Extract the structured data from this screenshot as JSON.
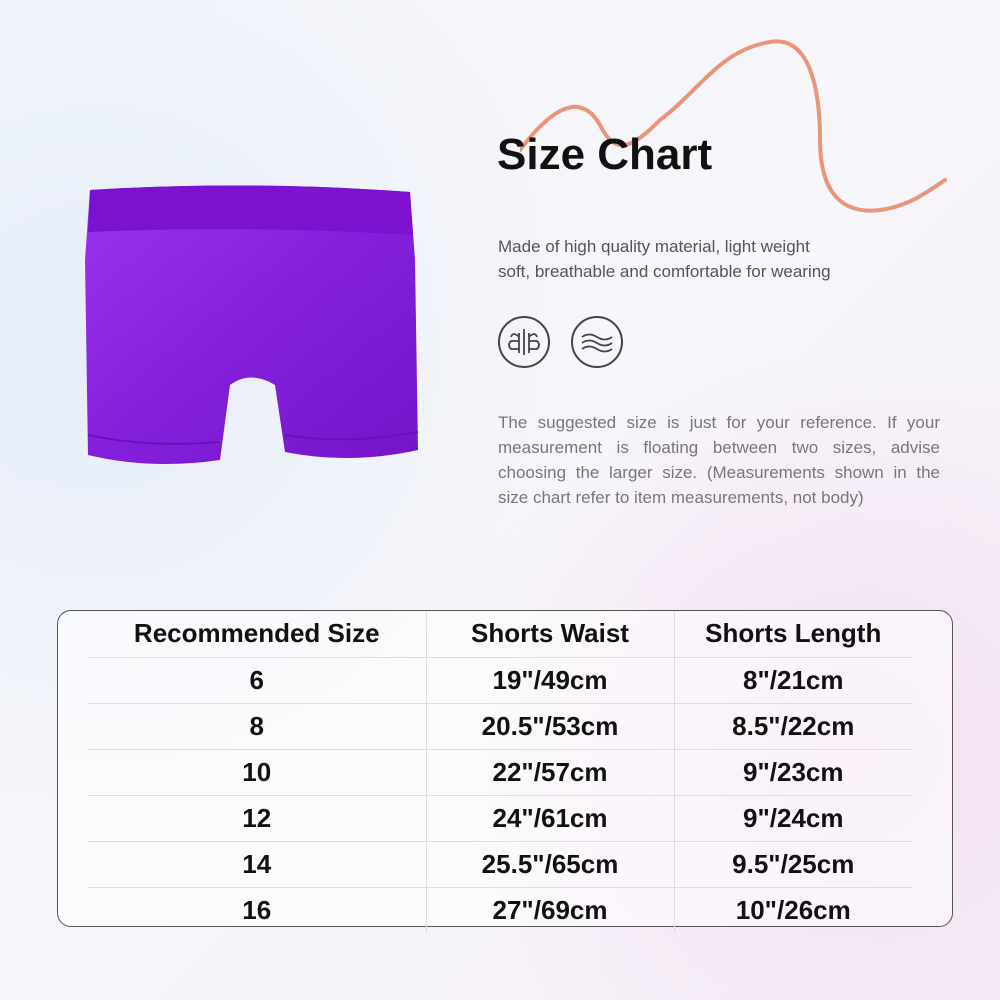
{
  "title": "Size Chart",
  "description": [
    "Made of high quality material, light weight",
    "soft, breathable and comfortable for wearing"
  ],
  "icons": [
    "breathable-icon",
    "lightweight-wave-icon"
  ],
  "note": "The suggested size is just for your reference. If your measurement is floating between two sizes, advise choosing the larger size. (Measurements shown in the size chart refer to item measurements, not body)",
  "product_color": "#8a22e0",
  "accent_color": "#e8957a",
  "table": {
    "headers": [
      "Recommended Size",
      "Shorts Waist",
      "Shorts Length"
    ],
    "rows": [
      [
        "6",
        "19\"/49cm",
        "8\"/21cm"
      ],
      [
        "8",
        "20.5\"/53cm",
        "8.5\"/22cm"
      ],
      [
        "10",
        "22\"/57cm",
        "9\"/23cm"
      ],
      [
        "12",
        "24\"/61cm",
        "9\"/24cm"
      ],
      [
        "14",
        "25.5\"/65cm",
        "9.5\"/25cm"
      ],
      [
        "16",
        "27\"/69cm",
        "10\"/26cm"
      ]
    ]
  }
}
